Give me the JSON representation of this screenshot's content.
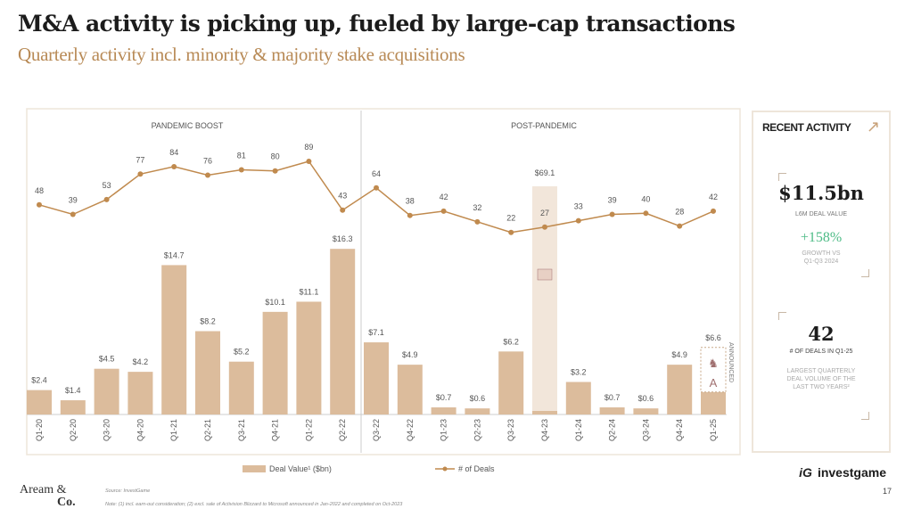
{
  "title": "M&A activity is picking up, fueled by large-cap transactions",
  "subtitle": "Quarterly activity incl. minority & majority stake acquisitions",
  "colors": {
    "bar": "#dcbc9c",
    "line": "#c08a4e",
    "broken_bar": "#f2e6da",
    "accent_green": "#4dbb86"
  },
  "chart_data": {
    "type": "bar+line",
    "categories": [
      "Q1-20",
      "Q2-20",
      "Q3-20",
      "Q4-20",
      "Q1-21",
      "Q2-21",
      "Q3-21",
      "Q4-21",
      "Q1-22",
      "Q2-22",
      "Q3-22",
      "Q4-22",
      "Q1-23",
      "Q2-23",
      "Q3-23",
      "Q4-23",
      "Q1-24",
      "Q2-24",
      "Q3-24",
      "Q4-24",
      "Q1-25"
    ],
    "series": [
      {
        "name": "Deal Value¹ ($bn)",
        "type": "bar",
        "values": [
          2.4,
          1.4,
          4.5,
          4.2,
          14.7,
          8.2,
          5.2,
          10.1,
          11.1,
          16.3,
          7.1,
          4.9,
          0.7,
          0.6,
          6.2,
          69.1,
          3.2,
          0.7,
          0.6,
          4.9,
          6.6
        ],
        "labels": [
          "$2.4",
          "$1.4",
          "$4.5",
          "$4.2",
          "$14.7",
          "$8.2",
          "$5.2",
          "$10.1",
          "$11.1",
          "$16.3",
          "$7.1",
          "$4.9",
          "$0.7",
          "$0.6",
          "$6.2",
          "$69.1",
          "$3.2",
          "$0.7",
          "$0.6",
          "$4.9",
          "$6.6"
        ]
      },
      {
        "name": "# of Deals",
        "type": "line",
        "values": [
          48,
          39,
          53,
          77,
          84,
          76,
          81,
          80,
          89,
          43,
          64,
          38,
          42,
          32,
          22,
          27,
          33,
          39,
          40,
          28,
          42
        ]
      }
    ],
    "periods": [
      {
        "label": "PANDEMIC BOOST"
      },
      {
        "label": "POST-PANDEMIC"
      }
    ],
    "annotations": {
      "announced": "ANNOUNCED",
      "broken_bar_category": "Q4-23",
      "deal_logo": "Activision Blizzard"
    },
    "legend_position": "bottom",
    "grid": false
  },
  "legend": {
    "bar": "Deal Value¹ ($bn)",
    "line": "# of Deals"
  },
  "panel": {
    "heading": "RECENT ACTIVITY",
    "value1": "$11.5bn",
    "value1_label": "L6M DEAL VALUE",
    "growth": "+158%",
    "growth_label1": "GROWTH VS",
    "growth_label2": "Q1-Q3 2024",
    "value2": "42",
    "value2_label": "# OF DEALS IN Q1-25",
    "note1": "LARGEST QUARTERLY",
    "note2": "DEAL VOLUME OF THE",
    "note3": "LAST TWO YEARS²"
  },
  "footer": {
    "logo_line1": "Aream &",
    "logo_line2": "Co.",
    "source": "Source: InvestGame",
    "note": "Note: (1) incl. earn-out consideration; (2) excl. sale of Activision Blizzard to Microsoft announced in Jan-2022 and completed on Oct-2023",
    "brand": "investgame",
    "page": "17"
  }
}
